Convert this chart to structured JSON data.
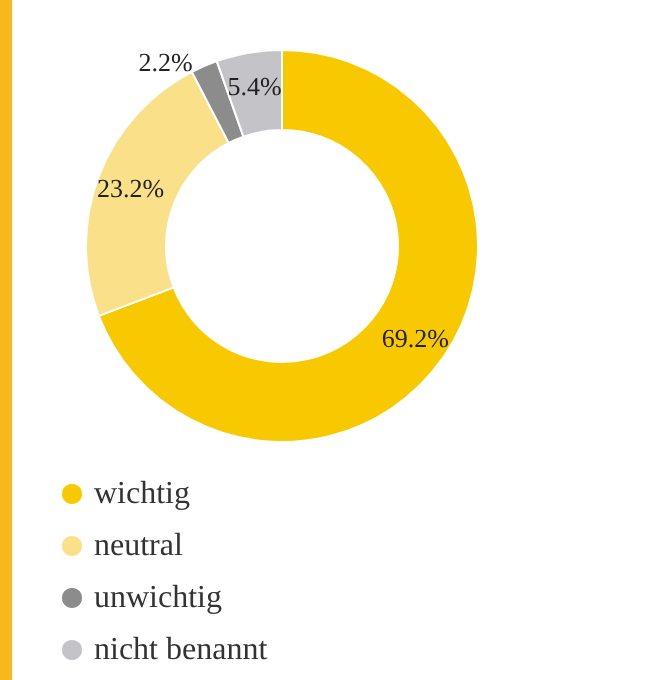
{
  "chart_data": {
    "type": "donut",
    "categories": [
      "wichtig",
      "neutral",
      "unwichtig",
      "nicht benannt"
    ],
    "values": [
      69.2,
      23.2,
      2.2,
      5.4
    ],
    "colors": [
      "#f9c900",
      "#fbe08a",
      "#8c8c8c",
      "#c4c4c8"
    ],
    "value_labels": [
      "69.2%",
      "23.2%",
      "2.2%",
      "5.4%"
    ],
    "legend": "bottom left"
  }
}
